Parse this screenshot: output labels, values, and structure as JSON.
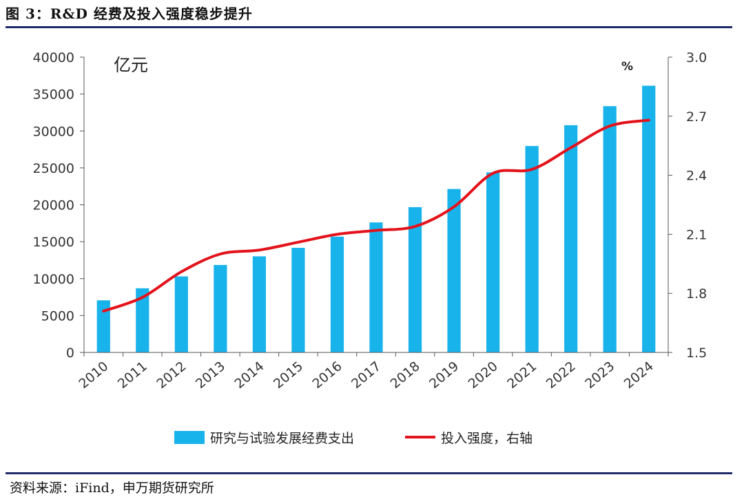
{
  "figure": {
    "title": "图 3：R&D 经费及投入强度稳步提升",
    "source": "资料来源：iFind，申万期货研究所"
  },
  "chart_data": {
    "type": "bar+line",
    "left_unit": "亿元",
    "right_unit": "%",
    "categories": [
      "2010",
      "2011",
      "2012",
      "2013",
      "2014",
      "2015",
      "2016",
      "2017",
      "2018",
      "2019",
      "2020",
      "2021",
      "2022",
      "2023",
      "2024"
    ],
    "series": [
      {
        "name": "研究与试验发展经费支出",
        "type": "bar",
        "axis": "left",
        "color": "#19b3ec",
        "values": [
          7060,
          8690,
          10300,
          11850,
          13020,
          14170,
          15680,
          17610,
          19680,
          22140,
          24390,
          27960,
          30780,
          33360,
          36130
        ]
      },
      {
        "name": "投入强度，右轴",
        "type": "line",
        "axis": "right",
        "color": "#e3121b",
        "values": [
          1.71,
          1.78,
          1.91,
          2.0,
          2.02,
          2.06,
          2.1,
          2.12,
          2.14,
          2.24,
          2.41,
          2.43,
          2.54,
          2.65,
          2.68
        ]
      }
    ],
    "left_axis": {
      "min": 0,
      "max": 40000,
      "ticks": [
        "0",
        "5000",
        "10000",
        "15000",
        "20000",
        "25000",
        "30000",
        "35000",
        "40000"
      ]
    },
    "right_axis": {
      "min": 1.5,
      "max": 3.0,
      "ticks": [
        "1.5",
        "1.8",
        "2.1",
        "2.4",
        "2.7",
        "3.0"
      ]
    },
    "grid": false,
    "legend_position": "bottom"
  }
}
